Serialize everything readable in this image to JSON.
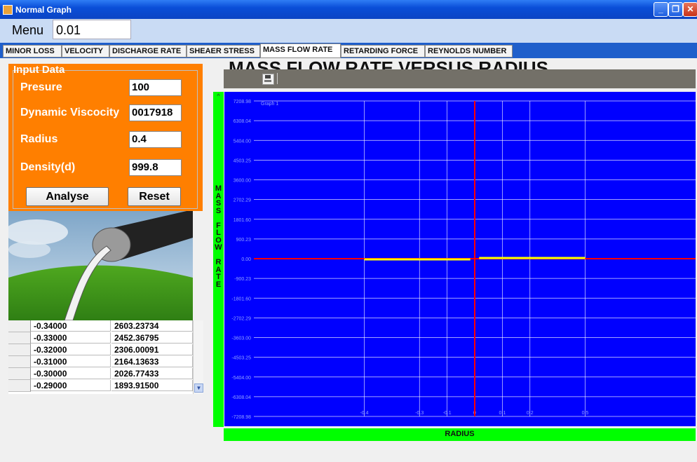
{
  "window": {
    "title": "Normal Graph",
    "minimize_label": "_",
    "restore_label": "❐",
    "close_label": "✕"
  },
  "menu": {
    "label": "Menu",
    "value": "0.01"
  },
  "tabs": [
    {
      "label": "MINOR LOSS"
    },
    {
      "label": "VELOCITY"
    },
    {
      "label": "DISCHARGE RATE"
    },
    {
      "label": "SHEAER STRESS"
    },
    {
      "label": "MASS FLOW RATE",
      "active": true
    },
    {
      "label": "RETARDING FORCE"
    },
    {
      "label": "REYNOLDS NUMBER"
    }
  ],
  "input_data": {
    "legend": "Input Data",
    "fields": [
      {
        "label": "Presure",
        "value": "100"
      },
      {
        "label": "Dynamic Viscocity",
        "value": "0017918"
      },
      {
        "label": "Radius",
        "value": "0.4"
      },
      {
        "label": "Density(d)",
        "value": "999.8"
      }
    ],
    "analyse_label": "Analyse",
    "reset_label": "Reset"
  },
  "table_rows": [
    {
      "radius": "-0.34000",
      "value": "2603.23734"
    },
    {
      "radius": "-0.33000",
      "value": "2452.36795"
    },
    {
      "radius": "-0.32000",
      "value": "2306.00091"
    },
    {
      "radius": "-0.31000",
      "value": "2164.13633"
    },
    {
      "radius": "-0.30000",
      "value": "2026.77433"
    },
    {
      "radius": "-0.29000",
      "value": "1893.91500"
    }
  ],
  "chart_title": "MASS FLOW RATE VERSUS RADIUS",
  "y_axis_label": "MASS FLOW RATE",
  "x_axis_label": "RADIUS",
  "colors": {
    "plot_bg": "#0000ff",
    "axis": "#ff0000",
    "series": "#ffff00",
    "grid": "#ffffff",
    "axis_bar": "#00ff00"
  },
  "chart_data": {
    "type": "line",
    "legend_text": "Graph 1",
    "xlim": [
      -1,
      1
    ],
    "ylim": [
      -7208.98,
      7208.98
    ],
    "yticks": [
      "7208.98",
      "6308.04",
      "5404.00",
      "4503.25",
      "3600.00",
      "2702.29",
      "1801.60",
      "900.23",
      "0.00",
      "-900.23",
      "-1801.60",
      "-2702.29",
      "-3603.00",
      "-4503.25",
      "-5404.00",
      "-6308.04",
      "-7208.98"
    ],
    "xtick_labels": [
      {
        "x": -0.5,
        "label": "-0.4"
      },
      {
        "x": -0.25,
        "label": "-0.3"
      },
      {
        "x": -0.125,
        "label": "-0.1"
      },
      {
        "x": 0,
        "label": "0"
      },
      {
        "x": 0.125,
        "label": "0.1"
      },
      {
        "x": 0.25,
        "label": "0.2"
      },
      {
        "x": 0.5,
        "label": "0.5"
      }
    ],
    "grid": true,
    "series": [
      {
        "x": [
          -0.5,
          -0.34,
          -0.33,
          -0.32,
          -0.31,
          -0.3,
          -0.29,
          -0.2,
          -0.1,
          -0.02,
          0.02,
          0.1,
          0.2,
          0.3,
          0.4,
          0.5
        ],
        "y": [
          -3,
          2603.23734,
          2452.36795,
          2306.00091,
          2164.13633,
          2026.77433,
          1893.915,
          0,
          0,
          0,
          0,
          0,
          0,
          0,
          0,
          0
        ]
      }
    ]
  }
}
